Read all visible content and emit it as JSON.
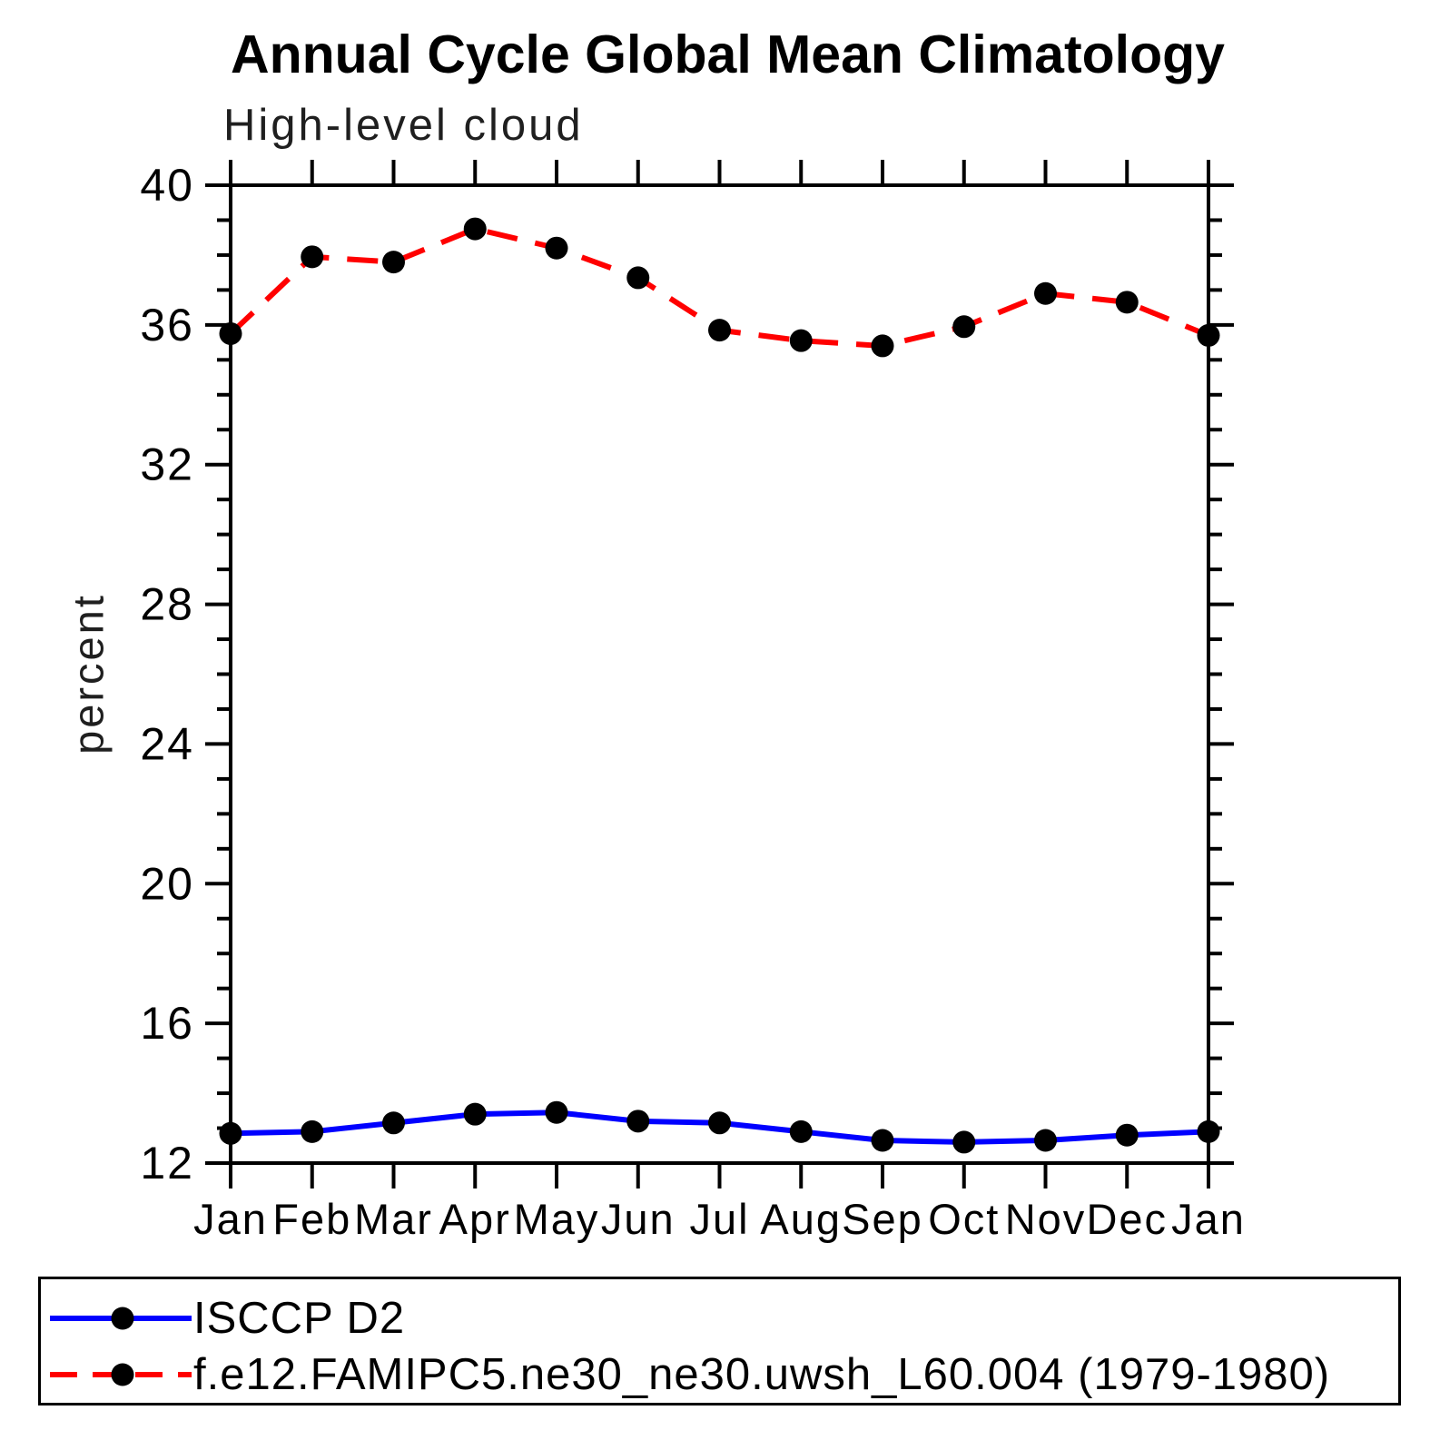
{
  "page": {
    "background": "#ffffff",
    "text_color": "#000000"
  },
  "chart_data": {
    "type": "line",
    "title": "Annual Cycle Global Mean Climatology",
    "subtitle": "High-level cloud",
    "xlabel": "",
    "ylabel": "percent",
    "categories": [
      "Jan",
      "Feb",
      "Mar",
      "Apr",
      "May",
      "Jun",
      "Jul",
      "Aug",
      "Sep",
      "Oct",
      "Nov",
      "Dec",
      "Jan"
    ],
    "ylim": [
      12,
      40
    ],
    "ytick_major_interval": 4,
    "ytick_minor_interval": 1,
    "ytick_major_labels": [
      "12",
      "16",
      "20",
      "24",
      "28",
      "32",
      "36",
      "40"
    ],
    "grid": false,
    "legend_position": "bottom box",
    "axis_color": "#000000",
    "marker": "filled-circle",
    "marker_color": "#000000",
    "series": [
      {
        "name": "ISCCP D2",
        "color": "#0000ff",
        "line_style": "solid",
        "dash": "none",
        "values": [
          12.85,
          12.9,
          13.15,
          13.4,
          13.45,
          13.2,
          13.15,
          12.9,
          12.65,
          12.6,
          12.65,
          12.8,
          12.9
        ]
      },
      {
        "name": "f.e12.FAMIPC5.ne30_ne30.uwsh_L60.004 (1979-1980)",
        "color": "#ff0000",
        "line_style": "dashed",
        "dash": "34 20",
        "values": [
          35.75,
          37.95,
          37.8,
          38.75,
          38.2,
          37.35,
          35.85,
          35.55,
          35.4,
          35.95,
          36.9,
          36.65,
          35.7
        ]
      }
    ]
  }
}
